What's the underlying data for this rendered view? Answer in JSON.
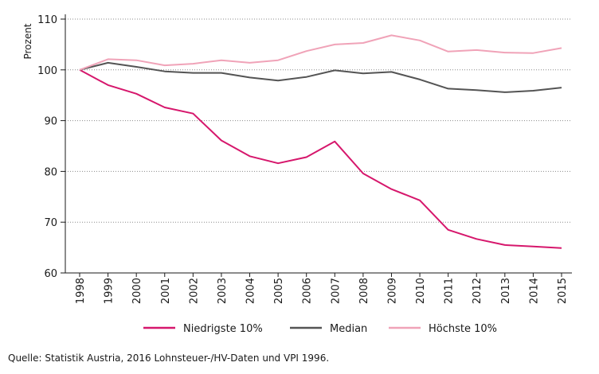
{
  "chart_data": {
    "type": "line",
    "title": "",
    "xlabel": "",
    "ylabel": "Prozent",
    "ylim": [
      60,
      110
    ],
    "y_ticks": [
      60,
      70,
      80,
      90,
      100,
      110
    ],
    "grid": "horizontal",
    "legend_position": "bottom",
    "categories": [
      "1998",
      "1999",
      "2000",
      "2001",
      "2002",
      "2003",
      "2004",
      "2005",
      "2006",
      "2007",
      "2008",
      "2009",
      "2010",
      "2011",
      "2012",
      "2013",
      "2014",
      "2015"
    ],
    "series": [
      {
        "name": "Niedrigste 10%",
        "color": "#d6176c",
        "values": [
          100,
          97.0,
          95.3,
          92.6,
          91.4,
          86.1,
          83.0,
          81.6,
          82.8,
          85.9,
          79.6,
          76.5,
          74.3,
          68.5,
          66.7,
          65.5,
          65.2,
          64.9
        ]
      },
      {
        "name": "Median",
        "color": "#545454",
        "values": [
          100,
          101.4,
          100.6,
          99.7,
          99.4,
          99.4,
          98.5,
          97.9,
          98.6,
          99.9,
          99.3,
          99.6,
          98.1,
          96.3,
          96.0,
          95.6,
          95.9,
          96.5
        ]
      },
      {
        "name": "Höchste 10%",
        "color": "#f0a3b8",
        "values": [
          100,
          102.1,
          101.9,
          100.9,
          101.2,
          101.9,
          101.4,
          101.9,
          103.7,
          105.0,
          105.3,
          106.8,
          105.8,
          103.6,
          103.9,
          103.4,
          103.3,
          104.3
        ]
      }
    ]
  },
  "source_text": "Quelle: Statistik Austria, 2016 Lohnsteuer-/HV-Daten und VPI 1996."
}
